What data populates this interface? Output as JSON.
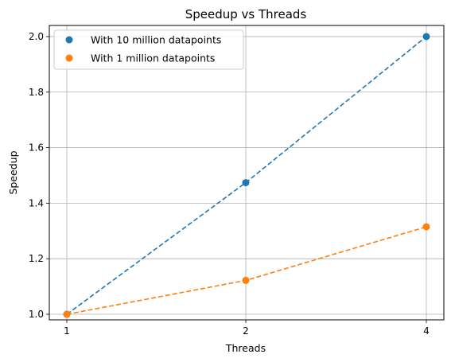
{
  "chart_data": {
    "type": "scatter",
    "title": "Speedup vs Threads",
    "xlabel": "Threads",
    "ylabel": "Speedup",
    "x_categories": [
      "1",
      "2",
      "4"
    ],
    "ylim": [
      0.98,
      2.04
    ],
    "yticks": [
      "1.0",
      "1.2",
      "1.4",
      "1.6",
      "1.8",
      "2.0"
    ],
    "grid": true,
    "legend_position": "top-left",
    "series": [
      {
        "name": "With 10 million datapoints",
        "color": "#1f77b4",
        "line_style": "dashed",
        "x": [
          "1",
          "2",
          "4"
        ],
        "values": [
          1.0,
          1.474,
          2.0
        ]
      },
      {
        "name": "With 1 million datapoints",
        "color": "#ff7f0e",
        "line_style": "dashed",
        "x": [
          "1",
          "2",
          "4"
        ],
        "values": [
          1.0,
          1.122,
          1.315
        ]
      }
    ]
  }
}
